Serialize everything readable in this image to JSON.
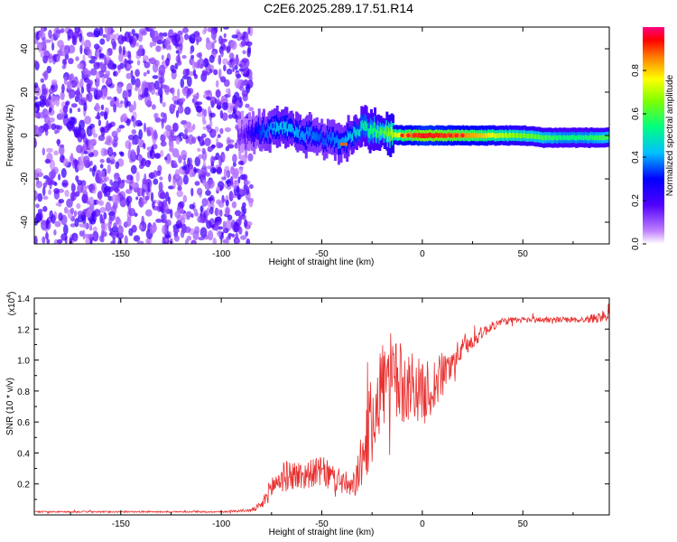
{
  "title": "C2E6.2025.289.17.51.R14",
  "top_panel": {
    "xlabel": "Height of straight line (km)",
    "ylabel": "Frequency (Hz)",
    "xticks": [
      "-150",
      "-100",
      "-50",
      "0",
      "50"
    ],
    "yticks": [
      "40",
      "20",
      "0",
      "-20",
      "-40"
    ],
    "colorbar_label": "Normalized spectral amplitude",
    "colorbar_ticks": [
      "0.0",
      "0.2",
      "0.4",
      "0.6",
      "0.8"
    ]
  },
  "bottom_panel": {
    "xlabel": "Height of straight line (km)",
    "ylabel": "SNR (10 * v/v)",
    "multiplier_base": "(x10",
    "multiplier_exp": "4",
    "multiplier_close": ")",
    "xticks": [
      "-150",
      "-100",
      "-50",
      "0",
      "50"
    ],
    "yticks": [
      "1.4",
      "1.2",
      "1.0",
      "0.8",
      "0.6",
      "0.4",
      "0.2"
    ]
  },
  "colors": {
    "line": "#e83030",
    "axis": "#000000"
  },
  "chart_data": [
    {
      "type": "heatmap",
      "title": "C2E6.2025.289.17.51.R14",
      "xlabel": "Height of straight line (km)",
      "ylabel": "Frequency (Hz)",
      "xlim": [
        -193,
        93
      ],
      "ylim": [
        -50,
        50
      ],
      "colorbar": {
        "label": "Normalized spectral amplitude",
        "range": [
          0,
          1
        ]
      },
      "ridge": {
        "x": [
          -90,
          -80,
          -70,
          -60,
          -50,
          -40,
          -30,
          -20,
          -10,
          0,
          10,
          20,
          30,
          40,
          50,
          60,
          70,
          80,
          90
        ],
        "frequency": [
          0,
          2,
          3,
          1,
          -1,
          -3,
          4,
          1,
          0,
          0,
          0,
          0,
          0,
          0,
          0,
          -1,
          -1,
          -1,
          -1
        ],
        "amplitude": [
          0.15,
          0.35,
          0.45,
          0.4,
          0.35,
          0.4,
          0.5,
          0.6,
          0.8,
          0.95,
          0.9,
          0.85,
          0.8,
          0.7,
          0.65,
          0.6,
          0.55,
          0.55,
          0.6
        ]
      },
      "noise_region_x": [
        -193,
        -85
      ]
    },
    {
      "type": "line",
      "xlabel": "Height of straight line (km)",
      "ylabel": "SNR (10 * v/v)",
      "multiplier": "x10^4",
      "xlim": [
        -193,
        93
      ],
      "ylim": [
        0,
        1.4
      ],
      "series": [
        {
          "name": "SNR",
          "x": [
            -193,
            -150,
            -100,
            -85,
            -80,
            -75,
            -70,
            -65,
            -60,
            -55,
            -50,
            -45,
            -40,
            -35,
            -30,
            -25,
            -20,
            -15,
            -10,
            -5,
            0,
            5,
            10,
            15,
            20,
            25,
            30,
            35,
            40,
            50,
            60,
            70,
            80,
            90,
            93
          ],
          "values": [
            0.02,
            0.02,
            0.02,
            0.03,
            0.06,
            0.18,
            0.24,
            0.26,
            0.25,
            0.27,
            0.28,
            0.24,
            0.22,
            0.16,
            0.35,
            0.62,
            0.85,
            0.88,
            0.82,
            0.85,
            0.78,
            0.82,
            0.9,
            1.0,
            1.07,
            1.12,
            1.18,
            1.22,
            1.25,
            1.26,
            1.26,
            1.26,
            1.26,
            1.28,
            1.33
          ],
          "noise": [
            0.005,
            0.005,
            0.005,
            0.01,
            0.03,
            0.08,
            0.1,
            0.1,
            0.1,
            0.09,
            0.1,
            0.1,
            0.09,
            0.08,
            0.18,
            0.3,
            0.3,
            0.3,
            0.25,
            0.22,
            0.2,
            0.2,
            0.15,
            0.1,
            0.07,
            0.05,
            0.04,
            0.03,
            0.025,
            0.02,
            0.02,
            0.02,
            0.02,
            0.04,
            0.06
          ]
        }
      ]
    }
  ]
}
